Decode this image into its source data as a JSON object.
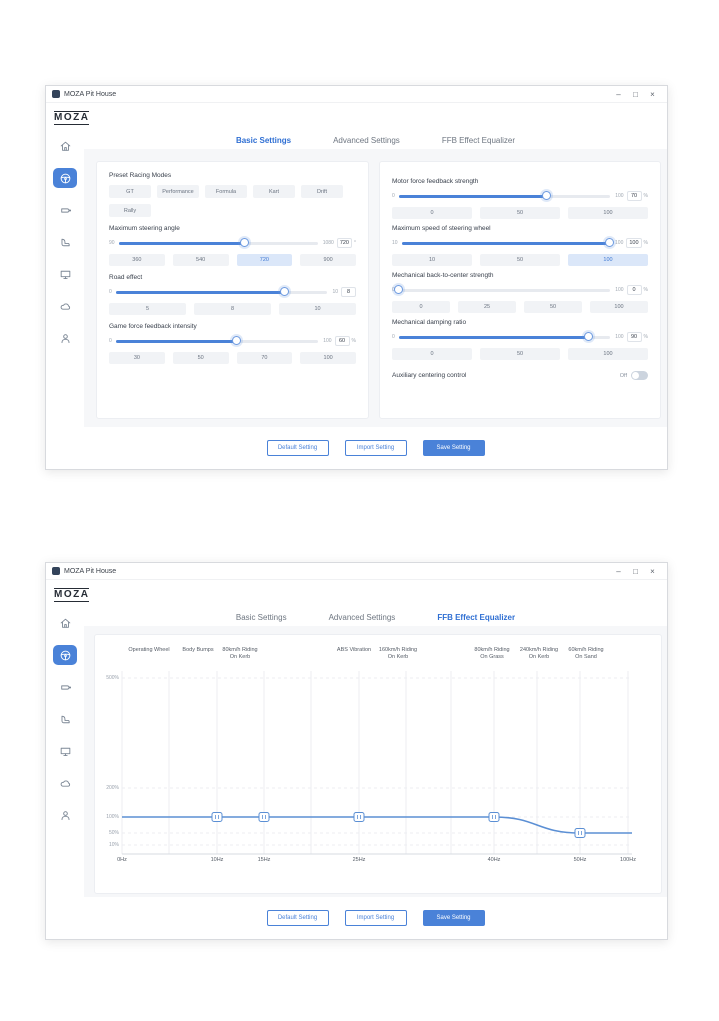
{
  "app": {
    "titlebar": {
      "title": "MOZA Pit House",
      "minimize": "–",
      "maximize": "□",
      "close": "×"
    },
    "logo": {
      "brand": "MOZA",
      "sub": "RACING"
    },
    "sidebar": {
      "items": [
        {
          "name": "home",
          "active": false
        },
        {
          "name": "steering-wheel",
          "active": true
        },
        {
          "name": "wheelbase",
          "active": false
        },
        {
          "name": "rig",
          "active": false
        },
        {
          "name": "display",
          "active": false
        },
        {
          "name": "cloud",
          "active": false
        },
        {
          "name": "user",
          "active": false
        }
      ]
    },
    "tabs": [
      "Basic Settings",
      "Advanced Settings",
      "FFB Effect Equalizer"
    ],
    "footer_buttons": [
      {
        "label": "Default Setting",
        "primary": false
      },
      {
        "label": "Import Setting",
        "primary": false
      },
      {
        "label": "Save Setting",
        "primary": true
      }
    ],
    "accent": "#4a82d8"
  },
  "window_basic": {
    "active_tab": "Basic Settings",
    "preset": {
      "label": "Preset Racing Modes",
      "modes": [
        "GT",
        "Performance",
        "Formula",
        "Kart",
        "Drift",
        "Rally"
      ]
    },
    "left_sliders": [
      {
        "label": "Maximum steering angle",
        "min": "90",
        "max": "1080",
        "value": "720",
        "unit": "°",
        "presets": [
          "360",
          "540",
          "720",
          "900"
        ],
        "selected_preset": "720"
      },
      {
        "label": "Road effect",
        "min": "0",
        "max": "10",
        "value": "8",
        "unit": "",
        "presets": [
          "5",
          "8",
          "10"
        ],
        "selected_preset": ""
      },
      {
        "label": "Game force feedback intensity",
        "min": "0",
        "max": "100",
        "value": "60",
        "unit": "%",
        "presets": [
          "30",
          "50",
          "70",
          "100"
        ],
        "selected_preset": ""
      }
    ],
    "right_sliders": [
      {
        "label": "Motor force feedback strength",
        "min": "0",
        "max": "100",
        "value": "70",
        "unit": "%",
        "presets": [
          "0",
          "50",
          "100"
        ],
        "selected_preset": ""
      },
      {
        "label": "Maximum speed of steering wheel",
        "min": "10",
        "max": "100",
        "value": "100",
        "unit": "%",
        "presets": [
          "10",
          "50",
          "100"
        ],
        "selected_preset": "100"
      },
      {
        "label": "Mechanical back-to-center strength",
        "min": "0",
        "max": "100",
        "value": "0",
        "unit": "%",
        "presets": [
          "0",
          "25",
          "50",
          "100"
        ],
        "selected_preset": ""
      },
      {
        "label": "Mechanical damping ratio",
        "min": "0",
        "max": "100",
        "value": "90",
        "unit": "%",
        "presets": [
          "0",
          "50",
          "100"
        ],
        "selected_preset": ""
      }
    ],
    "toggle": {
      "label": "Auxiliary centering control",
      "state": "Off",
      "on": false
    }
  },
  "window_eq": {
    "active_tab": "FFB Effect Equalizer"
  },
  "chart_data": {
    "type": "line",
    "title": "FFB Effect Equalizer",
    "x_ticks": [
      "0Hz",
      "10Hz",
      "15Hz",
      "25Hz",
      "40Hz",
      "50Hz",
      "100Hz"
    ],
    "y_ticks": [
      "500%",
      "200%",
      "100%",
      "50%",
      "10%"
    ],
    "y_axis_nonlinear": true,
    "band_labels": [
      [
        "Operating Wheel"
      ],
      [
        "Body Bumps"
      ],
      [
        "80km/h Riding",
        "On Kerb"
      ],
      [
        "ABS Vibration"
      ],
      [
        "160km/h Riding",
        "On Kerb"
      ],
      [
        "80km/h Riding",
        "On Grass"
      ],
      [
        "240km/h Riding",
        "On Kerb"
      ],
      [
        "60km/h Riding",
        "On Sand"
      ]
    ],
    "series": [
      {
        "name": "ffb-gain",
        "points": [
          {
            "x": "0Hz",
            "y_percent": 100,
            "handle": false
          },
          {
            "x": "10Hz",
            "y_percent": 100,
            "handle": true
          },
          {
            "x": "15Hz",
            "y_percent": 100,
            "handle": true
          },
          {
            "x": "25Hz",
            "y_percent": 100,
            "handle": true
          },
          {
            "x": "40Hz",
            "y_percent": 100,
            "handle": true
          },
          {
            "x": "50Hz",
            "y_percent": 50,
            "handle": true
          },
          {
            "x": "100Hz",
            "y_percent": 50,
            "handle": false
          }
        ]
      }
    ],
    "line_color": "#5b8fd4"
  }
}
